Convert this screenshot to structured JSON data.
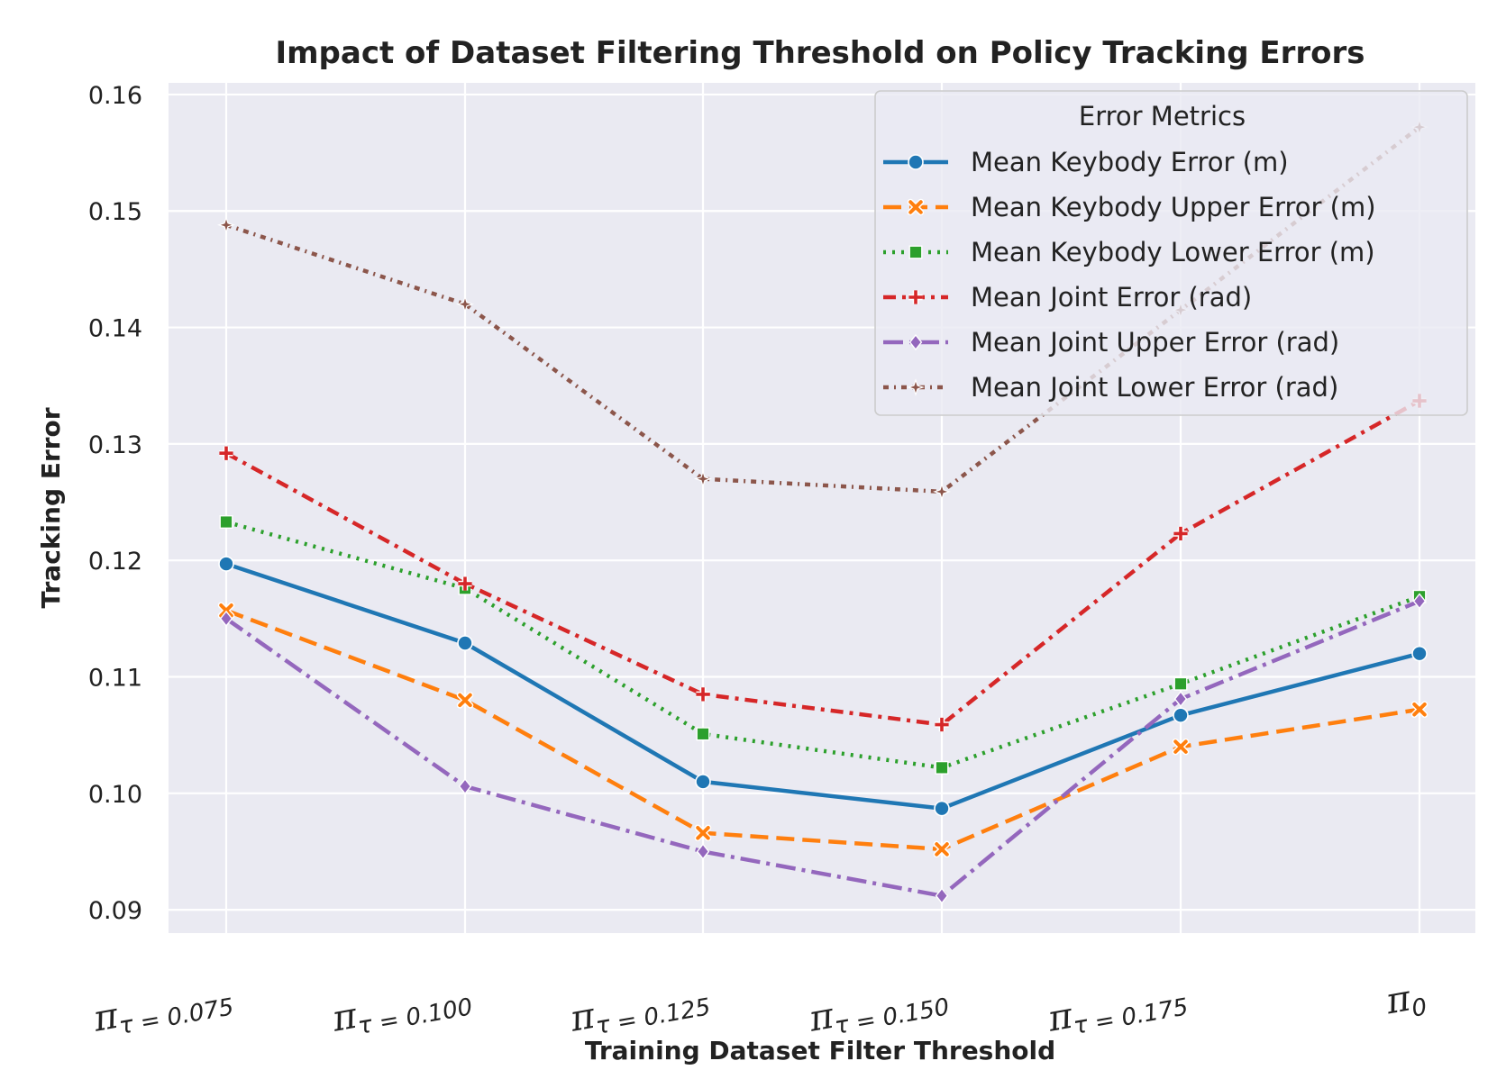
{
  "chart_data": {
    "type": "line",
    "title": "Impact of Dataset Filtering Threshold on Policy Tracking Errors",
    "xlabel": "Training Dataset Filter Threshold",
    "ylabel": "Tracking Error",
    "categories": [
      {
        "main": "π",
        "sub": "τ = 0.075"
      },
      {
        "main": "π",
        "sub": "τ = 0.100"
      },
      {
        "main": "π",
        "sub": "τ = 0.125"
      },
      {
        "main": "π",
        "sub": "τ = 0.150"
      },
      {
        "main": "π",
        "sub": "τ = 0.175"
      },
      {
        "main": "π",
        "sub": "0"
      }
    ],
    "ylim": [
      0.088,
      0.161
    ],
    "yticks": [
      "0.09",
      "0.10",
      "0.11",
      "0.12",
      "0.13",
      "0.14",
      "0.15",
      "0.16"
    ],
    "grid": true,
    "legend": {
      "title": "Error Metrics",
      "placement": "top-right"
    },
    "series": [
      {
        "name": "Mean Keybody Error (m)",
        "color": "#1f77b4",
        "marker": "circle",
        "dash": "solid",
        "values": [
          0.1197,
          0.1129,
          0.101,
          0.0987,
          0.1067,
          0.112
        ]
      },
      {
        "name": "Mean Keybody Upper Error (m)",
        "color": "#ff7f0e",
        "marker": "x",
        "dash": "dashed",
        "values": [
          0.1157,
          0.108,
          0.0966,
          0.0952,
          0.104,
          0.1072
        ]
      },
      {
        "name": "Mean Keybody Lower Error (m)",
        "color": "#2ca02c",
        "marker": "square",
        "dash": "dotted",
        "values": [
          0.1233,
          0.1176,
          0.1051,
          0.1022,
          0.1094,
          0.1169
        ]
      },
      {
        "name": "Mean Joint Error (rad)",
        "color": "#d62728",
        "marker": "plus",
        "dash": "dashdot2",
        "values": [
          0.1292,
          0.118,
          0.1085,
          0.1059,
          0.1223,
          0.1337
        ]
      },
      {
        "name": "Mean Joint Upper Error (rad)",
        "color": "#9467bd",
        "marker": "diamond",
        "dash": "dashdot",
        "values": [
          0.115,
          0.1006,
          0.095,
          0.0912,
          0.1081,
          0.1165
        ]
      },
      {
        "name": "Mean Joint Lower Error (rad)",
        "color": "#8c564b",
        "marker": "star",
        "dash": "dotdot",
        "values": [
          0.1488,
          0.142,
          0.127,
          0.1259,
          0.1415,
          0.1572
        ]
      }
    ]
  }
}
